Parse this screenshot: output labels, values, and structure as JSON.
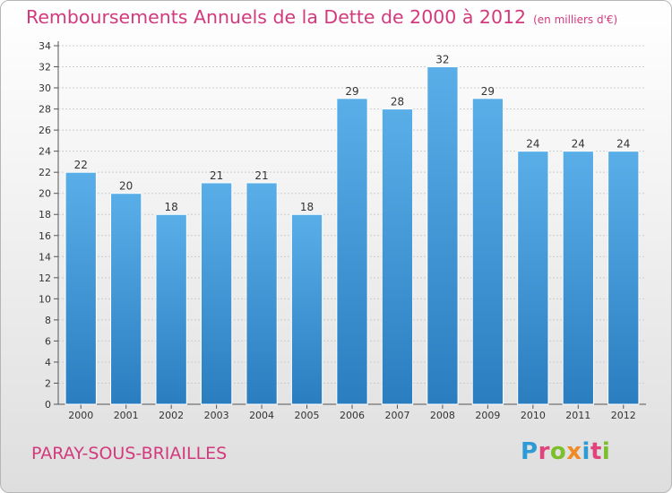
{
  "chart_data": {
    "type": "bar",
    "title": "Remboursements Annuels de la Dette de 2000 à 2012",
    "unit_note": "(en milliers d'€)",
    "categories": [
      "2000",
      "2001",
      "2002",
      "2003",
      "2004",
      "2005",
      "2006",
      "2007",
      "2008",
      "2009",
      "2010",
      "2011",
      "2012"
    ],
    "values": [
      22,
      20,
      18,
      21,
      21,
      18,
      29,
      28,
      32,
      29,
      24,
      24,
      24
    ],
    "ylim": [
      0,
      34
    ],
    "yticks": [
      0,
      2,
      4,
      6,
      8,
      10,
      12,
      14,
      16,
      18,
      20,
      22,
      24,
      26,
      28,
      30,
      32,
      34
    ],
    "grid": true,
    "bar_color_top": "#5aaee8",
    "bar_color_bottom": "#2a7ec0"
  },
  "footer": {
    "city": "PARAY-SOUS-BRIAILLES",
    "logo": "Proxiti"
  },
  "colors": {
    "title": "#d23a7d",
    "grid": "#cccccc"
  }
}
